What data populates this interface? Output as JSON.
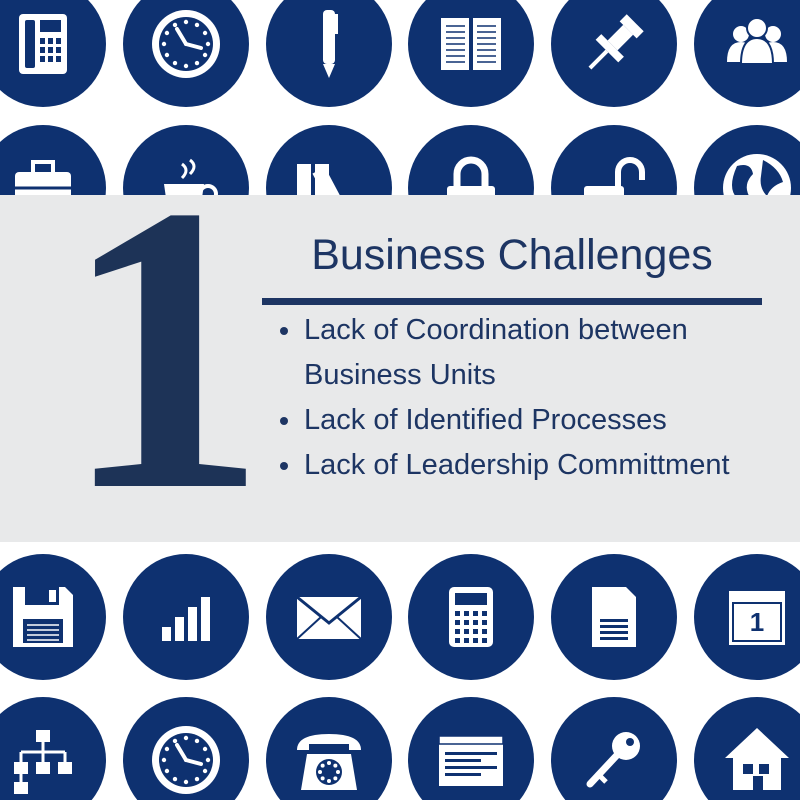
{
  "page": {
    "background": "#ffffff"
  },
  "colors": {
    "circle": "#0e3170",
    "icon": "#ffffff",
    "panel": "#e8e9ea",
    "text": "#1d3563",
    "number": "#1d3357"
  },
  "hero": {
    "number": "1"
  },
  "title": "Business Challenges",
  "bullets": [
    "Lack of Coordination between Business Units",
    "Lack of Identified Processes",
    "Lack of Leadership Committment"
  ],
  "icons": [
    [
      "phone-icon",
      "clock-icon",
      "pen-icon",
      "notebook-icon",
      "pushpin-icon",
      "people-icon"
    ],
    [
      "briefcase-icon",
      "coffee-cup-icon",
      "binders-icon",
      "padlock-icon",
      "unlocked-padlock-icon",
      "globe-icon"
    ],
    [
      "hidden-icon",
      "hidden-icon",
      "hidden-icon",
      "hidden-icon",
      "hidden-icon",
      "hidden-icon"
    ],
    [
      "floppy-disk-icon",
      "bar-chart-icon",
      "envelope-icon",
      "calculator-icon",
      "document-icon",
      "calendar-icon"
    ],
    [
      "org-chart-icon",
      "clock-icon",
      "rotary-phone-icon",
      "browser-window-icon",
      "key-icon",
      "house-icon"
    ]
  ],
  "calendar_day": "1"
}
